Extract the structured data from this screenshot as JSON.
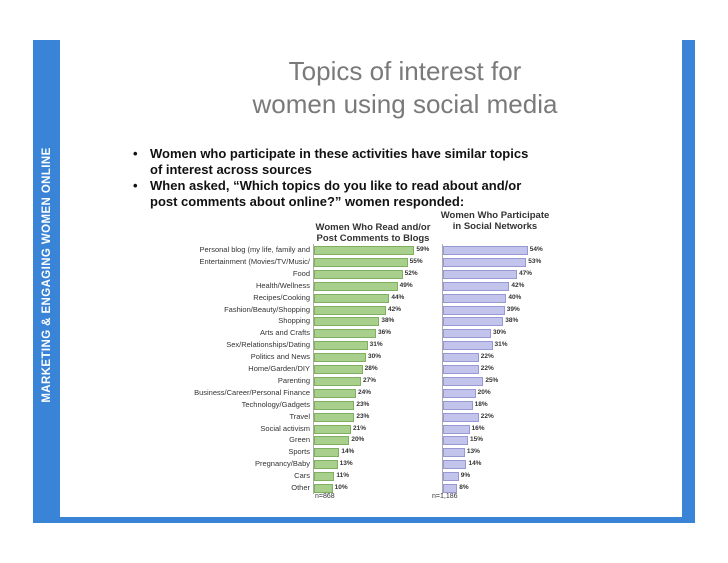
{
  "side_label": "MARKETING & ENGAGING WOMEN ONLINE",
  "title": {
    "line1": "Topics of interest for",
    "line2": "women using social media"
  },
  "bullets": [
    {
      "dot": "•",
      "text": "Women who participate in these activities have similar topics of interest across sources"
    },
    {
      "dot": "•",
      "text": "When asked, “Which topics do you like to read about and/or post comments about online?” women responded:"
    }
  ],
  "colors": {
    "frame": "#3a84d8",
    "blog_bar": "#a8cf8c",
    "social_bar": "#c3c4ec",
    "title": "#7a7a7a"
  },
  "chart_data": {
    "type": "bar",
    "orientation": "horizontal",
    "categories": [
      "Personal blog (my life, family and",
      "Entertainment (Movies/TV/Music/",
      "Food",
      "Health/Wellness",
      "Recipes/Cooking",
      "Fashion/Beauty/Shopping",
      "Shopping",
      "Arts and Crafts",
      "Sex/Relationships/Dating",
      "Politics and News",
      "Home/Garden/DIY",
      "Parenting",
      "Business/Career/Personal Finance",
      "Technology/Gadgets",
      "Travel",
      "Social activism",
      "Green",
      "Sports",
      "Pregnancy/Baby",
      "Cars",
      "Other"
    ],
    "series": [
      {
        "name": "Women Who Read and/or Post Comments to Blogs",
        "values": [
          59,
          55,
          52,
          49,
          44,
          42,
          38,
          36,
          31,
          30,
          28,
          27,
          24,
          23,
          23,
          21,
          20,
          14,
          13,
          11,
          10
        ],
        "labels": [
          "59%",
          "55%",
          "52%",
          "49%",
          "44%",
          "42%",
          "38%",
          "36%",
          "31%",
          "30%",
          "28%",
          "27%",
          "24%",
          "23%",
          "23%",
          "21%",
          "20%",
          "14%",
          "13%",
          "11%",
          "10%"
        ],
        "n": "n=868"
      },
      {
        "name": "Women Who Participate in Social Networks",
        "values": [
          54,
          53,
          47,
          42,
          40,
          39,
          38,
          30,
          31,
          22,
          22,
          25,
          20,
          18,
          22,
          16,
          15,
          13,
          14,
          9,
          8
        ],
        "labels": [
          "54%",
          "53%",
          "47%",
          "42%",
          "40%",
          "39%",
          "38%",
          "30%",
          "31%",
          "22%",
          "22%",
          "25%",
          "20%",
          "18%",
          "22%",
          "16%",
          "15%",
          "13%",
          "14%",
          "9%",
          "8%"
        ],
        "n": "n=1,186"
      }
    ],
    "xlim": [
      0,
      60
    ]
  }
}
